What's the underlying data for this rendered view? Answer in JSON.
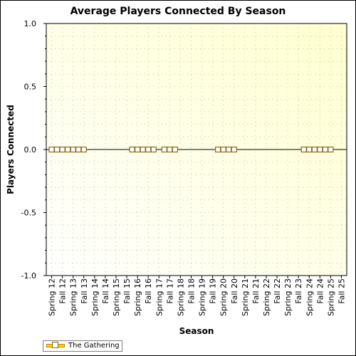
{
  "chart_data": {
    "type": "line",
    "title": "Average Players Connected By Season",
    "xlabel": "Season",
    "ylabel": "Players Connected",
    "ylim": [
      -1.0,
      1.0
    ],
    "yticks": [
      "1.0",
      "0.5",
      "0.0",
      "-0.5",
      "-1.0"
    ],
    "grid": true,
    "legend_position": "bottom-left",
    "categories": [
      "Spring12",
      "Fall12",
      "Spring13",
      "Fall13",
      "Spring14",
      "Fall14",
      "Spring15",
      "Fall15",
      "Spring16",
      "Fall16",
      "Spring17",
      "Fall17",
      "Spring18",
      "Fall18",
      "Spring19",
      "Fall19",
      "Spring20",
      "Fall20",
      "Spring21",
      "Fall21",
      "Spring22",
      "Fall22",
      "Spring23",
      "Fall23",
      "Spring24",
      "Fall24",
      "Spring25",
      "Fall25"
    ],
    "tick_labels": [
      "Spring 12",
      "Fall 12",
      "Spring 13",
      "Fall 13",
      "Spring 14",
      "Fall 14",
      "Spring 15",
      "Fall 15",
      "Spring 16",
      "Fall 16",
      "Spring 17",
      "Fall 17",
      "Spring 18",
      "Fall 18",
      "Spring 19",
      "Fall 19",
      "Spring 20",
      "Fall 20",
      "Spring 21",
      "Fall 21",
      "Spring 22",
      "Fall 22",
      "Spring 23",
      "Fall 23",
      "Spring 24",
      "Fall 24",
      "Spring 25",
      "Fall 25"
    ],
    "x": [
      "Spring12",
      "Spring12.5",
      "Fall12",
      "Fall12.5",
      "Spring13",
      "Spring13.5",
      "Fall13",
      "Spring16",
      "Spring16.5",
      "Fall16",
      "Fall16.5",
      "Spring17",
      "Fall17",
      "Fall17.5",
      "Spring18",
      "Fall20",
      "Fall20.5",
      "Spring21",
      "Spring21.5",
      "Fall24",
      "Fall24.5",
      "Spring25",
      "Spring25.5",
      "Fall25",
      "Fall25.5"
    ],
    "series": [
      {
        "name": "The Gathering",
        "segments": [
          {
            "start": 0,
            "values": [
              0,
              0,
              0,
              0,
              0,
              0,
              0
            ]
          },
          {
            "start": 7.5,
            "values": [
              0,
              0,
              0,
              0,
              0
            ]
          },
          {
            "start": 10.5,
            "values": [
              0,
              0,
              0
            ]
          },
          {
            "start": 15.5,
            "values": [
              0,
              0,
              0,
              0
            ]
          },
          {
            "start": 23.5,
            "values": [
              0,
              0,
              0,
              0,
              0,
              0
            ]
          }
        ]
      }
    ],
    "colors": {
      "plot_background_top": "#ffffd0",
      "plot_background_bottom": "#ffffff",
      "series_line": "#000000",
      "marker_fill": "#ffd700",
      "marker_stroke": "#8b6914"
    }
  },
  "legend": {
    "label": "The Gathering"
  }
}
